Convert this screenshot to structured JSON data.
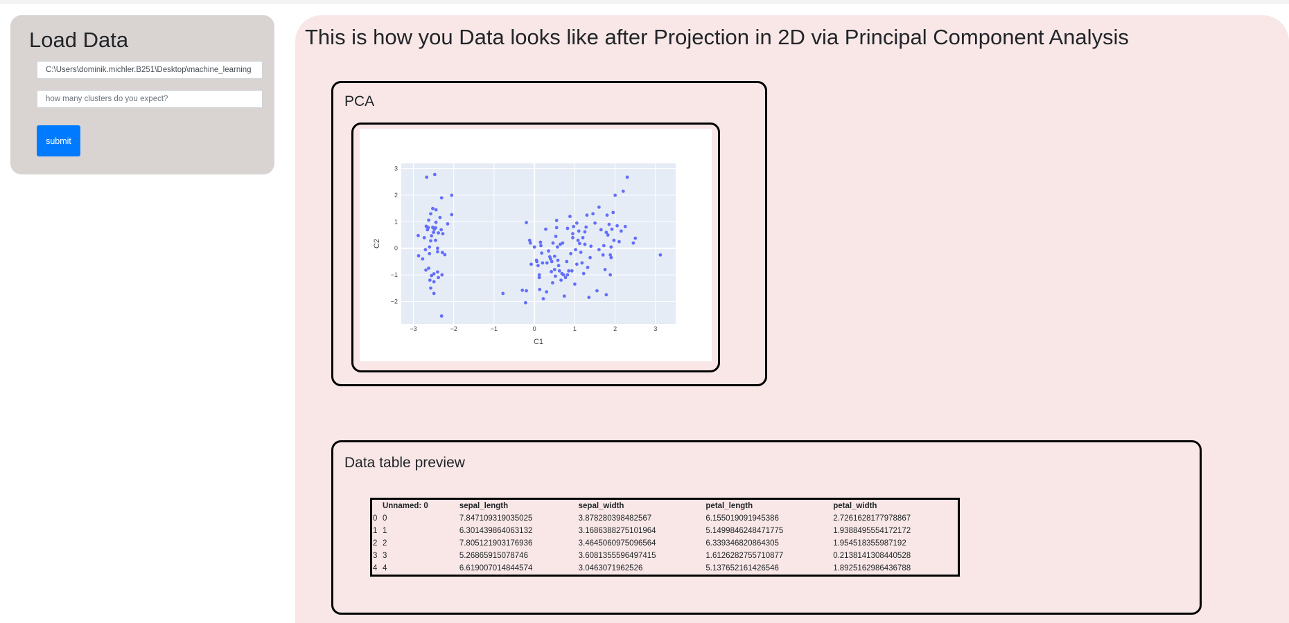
{
  "sidebar": {
    "title": "Load Data",
    "path_value": "C:\\Users\\dominik.michler.B251\\Desktop\\machine_learning",
    "clusters_placeholder": "how many clusters do you expect?",
    "submit_label": "submit"
  },
  "main": {
    "title": "This is how you Data looks like after Projection in 2D via Principal Component Analysis",
    "pca_card_title": "PCA",
    "table_card_title": "Data table preview"
  },
  "chart_data": {
    "type": "scatter",
    "xlabel": "C1",
    "ylabel": "C2",
    "xlim": [
      -3.3,
      3.5
    ],
    "ylim": [
      -2.85,
      3.2
    ],
    "xticks": [
      -3,
      -2,
      -1,
      0,
      1,
      2,
      3
    ],
    "yticks": [
      -2,
      -1,
      0,
      1,
      2,
      3
    ],
    "grid": true,
    "point_color": "#636efa",
    "plot_bg": "#e5ecf6",
    "points": [
      [
        -2.67,
        2.68
      ],
      [
        -2.47,
        2.78
      ],
      [
        -2.3,
        1.9
      ],
      [
        -2.05,
        2.0
      ],
      [
        -2.52,
        1.5
      ],
      [
        -2.44,
        1.45
      ],
      [
        -2.57,
        1.3
      ],
      [
        -2.05,
        1.27
      ],
      [
        -2.34,
        1.16
      ],
      [
        -2.62,
        1.06
      ],
      [
        -2.44,
        0.98
      ],
      [
        -2.15,
        0.92
      ],
      [
        -2.68,
        0.83
      ],
      [
        -2.63,
        0.78
      ],
      [
        -2.52,
        0.79
      ],
      [
        -2.45,
        0.77
      ],
      [
        -2.48,
        0.72
      ],
      [
        -2.31,
        0.7
      ],
      [
        -2.65,
        0.7
      ],
      [
        -2.5,
        0.6
      ],
      [
        -2.38,
        0.58
      ],
      [
        -2.27,
        0.55
      ],
      [
        -2.55,
        0.47
      ],
      [
        -2.73,
        0.4
      ],
      [
        -2.88,
        0.48
      ],
      [
        -2.45,
        0.3
      ],
      [
        -2.57,
        0.28
      ],
      [
        -2.4,
        0.0
      ],
      [
        -2.7,
        -0.05
      ],
      [
        -2.6,
        0.05
      ],
      [
        -2.28,
        -0.16
      ],
      [
        -2.6,
        -0.2
      ],
      [
        -2.4,
        -0.13
      ],
      [
        -2.87,
        -0.28
      ],
      [
        -2.22,
        -0.24
      ],
      [
        -2.77,
        -0.4
      ],
      [
        -2.62,
        -0.75
      ],
      [
        -2.69,
        -0.82
      ],
      [
        -2.49,
        -0.96
      ],
      [
        -2.4,
        -0.89
      ],
      [
        -2.29,
        -1.0
      ],
      [
        -2.55,
        -1.03
      ],
      [
        -2.38,
        -1.1
      ],
      [
        -2.49,
        -1.26
      ],
      [
        -2.59,
        -1.2
      ],
      [
        -2.57,
        -1.5
      ],
      [
        -2.49,
        -1.7
      ],
      [
        -2.3,
        -2.55
      ],
      [
        -0.78,
        -1.7
      ],
      [
        -0.3,
        -1.58
      ],
      [
        -0.2,
        -1.6
      ],
      [
        -0.22,
        -2.05
      ],
      [
        -0.2,
        0.97
      ],
      [
        -0.12,
        0.3
      ],
      [
        -0.1,
        0.2
      ],
      [
        -0.08,
        -0.6
      ],
      [
        0.0,
        0.05
      ],
      [
        0.05,
        -0.45
      ],
      [
        0.06,
        -0.5
      ],
      [
        0.09,
        -0.65
      ],
      [
        0.12,
        -1.0
      ],
      [
        0.12,
        -1.1
      ],
      [
        0.13,
        -1.55
      ],
      [
        0.15,
        0.23
      ],
      [
        0.16,
        0.1
      ],
      [
        0.18,
        -0.18
      ],
      [
        0.2,
        -0.55
      ],
      [
        0.22,
        -1.9
      ],
      [
        0.3,
        -1.64
      ],
      [
        0.31,
        -0.55
      ],
      [
        0.35,
        -0.1
      ],
      [
        0.38,
        -0.32
      ],
      [
        0.4,
        -0.4
      ],
      [
        0.42,
        -0.88
      ],
      [
        0.43,
        -0.5
      ],
      [
        0.46,
        0.2
      ],
      [
        0.5,
        -0.3
      ],
      [
        0.5,
        -0.8
      ],
      [
        0.52,
        -1.05
      ],
      [
        0.53,
        0.45
      ],
      [
        0.55,
        0.78
      ],
      [
        0.57,
        0.05
      ],
      [
        0.58,
        -0.45
      ],
      [
        0.6,
        -0.65
      ],
      [
        0.62,
        -0.85
      ],
      [
        0.64,
        0.15
      ],
      [
        0.66,
        -1.2
      ],
      [
        0.68,
        -0.95
      ],
      [
        0.7,
        0.2
      ],
      [
        0.72,
        -1.0
      ],
      [
        0.74,
        -1.8
      ],
      [
        0.77,
        -1.1
      ],
      [
        0.8,
        -0.5
      ],
      [
        0.82,
        0.75
      ],
      [
        0.85,
        -0.85
      ],
      [
        0.88,
        1.2
      ],
      [
        0.9,
        -0.2
      ],
      [
        0.93,
        -0.85
      ],
      [
        0.97,
        0.82
      ],
      [
        1.0,
        -1.35
      ],
      [
        1.02,
        -0.05
      ],
      [
        1.05,
        0.95
      ],
      [
        1.08,
        0.3
      ],
      [
        1.1,
        0.65
      ],
      [
        1.12,
        0.18
      ],
      [
        1.15,
        -0.15
      ],
      [
        1.18,
        -0.55
      ],
      [
        1.2,
        0.4
      ],
      [
        1.22,
        -0.95
      ],
      [
        1.25,
        0.15
      ],
      [
        1.28,
        0.8
      ],
      [
        1.3,
        1.25
      ],
      [
        1.32,
        -0.72
      ],
      [
        1.35,
        -1.85
      ],
      [
        1.38,
        -0.35
      ],
      [
        1.4,
        0.08
      ],
      [
        1.45,
        1.3
      ],
      [
        1.5,
        0.95
      ],
      [
        1.55,
        -1.6
      ],
      [
        1.6,
        1.55
      ],
      [
        1.65,
        0.7
      ],
      [
        1.7,
        -0.25
      ],
      [
        1.72,
        0.1
      ],
      [
        1.75,
        -0.8
      ],
      [
        1.78,
        -1.75
      ],
      [
        1.8,
        1.25
      ],
      [
        1.82,
        0.5
      ],
      [
        1.85,
        0.9
      ],
      [
        1.88,
        -0.25
      ],
      [
        1.9,
        0.05
      ],
      [
        1.92,
        0.72
      ],
      [
        1.95,
        1.35
      ],
      [
        1.97,
        0.3
      ],
      [
        2.0,
        2.0
      ],
      [
        2.05,
        0.85
      ],
      [
        2.1,
        0.25
      ],
      [
        2.15,
        0.65
      ],
      [
        2.2,
        2.15
      ],
      [
        2.25,
        0.82
      ],
      [
        2.3,
        2.68
      ],
      [
        2.45,
        0.2
      ],
      [
        2.5,
        0.38
      ],
      [
        3.12,
        -0.25
      ],
      [
        1.9,
        -0.35
      ],
      [
        1.88,
        -1.0
      ],
      [
        1.78,
        0.6
      ],
      [
        1.6,
        -0.05
      ],
      [
        0.95,
        0.4
      ],
      [
        0.82,
        -1.0
      ],
      [
        0.45,
        -1.3
      ],
      [
        0.28,
        0.72
      ],
      [
        0.95,
        0.55
      ],
      [
        1.25,
        0.62
      ],
      [
        1.05,
        -0.6
      ],
      [
        0.55,
        1.05
      ]
    ]
  },
  "table": {
    "headers": [
      "",
      "Unnamed: 0",
      "sepal_length",
      "sepal_width",
      "petal_length",
      "petal_width"
    ],
    "rows": [
      [
        "0",
        "0",
        "7.847109319035025",
        "3.878280398482567",
        "6.155019091945386",
        "2.7261628177978867"
      ],
      [
        "1",
        "1",
        "6.301439864063132",
        "3.1686388275101964",
        "5.1499846248471775",
        "1.9388495554172172"
      ],
      [
        "2",
        "2",
        "7.805121903176936",
        "3.4645060975096564",
        "6.339346820864305",
        "1.954518355987192"
      ],
      [
        "3",
        "3",
        "5.26865915078746",
        "3.6081355596497415",
        "1.6126282755710877",
        "0.2138141308440528"
      ],
      [
        "4",
        "4",
        "6.619007014844574",
        "3.0463071962526",
        "5.137652161426546",
        "1.8925162986436788"
      ]
    ]
  }
}
